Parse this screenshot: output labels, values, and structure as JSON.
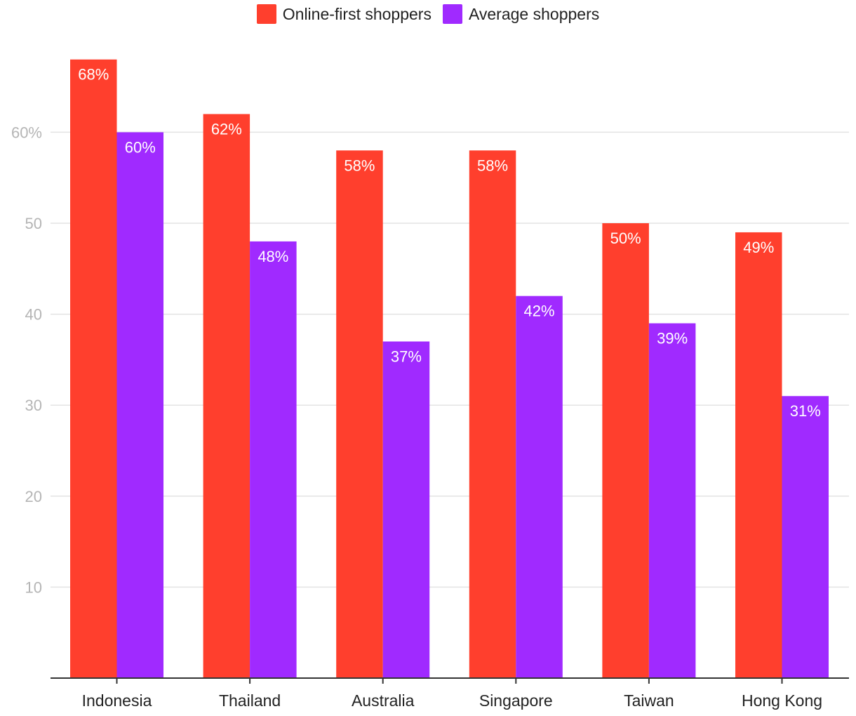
{
  "chart_data": {
    "type": "bar",
    "title": "",
    "xlabel": "",
    "ylabel": "",
    "categories": [
      "Indonesia",
      "Thailand",
      "Australia",
      "Singapore",
      "Taiwan",
      "Hong Kong"
    ],
    "series": [
      {
        "name": "Online-first shoppers",
        "color": "#ff3f2d",
        "values": [
          68,
          62,
          58,
          58,
          50,
          49
        ],
        "labels": [
          "68%",
          "62%",
          "58%",
          "58%",
          "50%",
          "49%"
        ]
      },
      {
        "name": "Average shoppers",
        "color": "#a02aff",
        "values": [
          60,
          48,
          37,
          42,
          39,
          31
        ],
        "labels": [
          "60%",
          "48%",
          "37%",
          "42%",
          "39%",
          "31%"
        ]
      }
    ],
    "ylim": [
      0,
      70
    ],
    "yticks": [
      10,
      20,
      30,
      40,
      50,
      60
    ],
    "ytick_labels": [
      "10",
      "20",
      "30",
      "40",
      "50",
      "60%"
    ],
    "grid": true,
    "legend_position": "top-center"
  }
}
